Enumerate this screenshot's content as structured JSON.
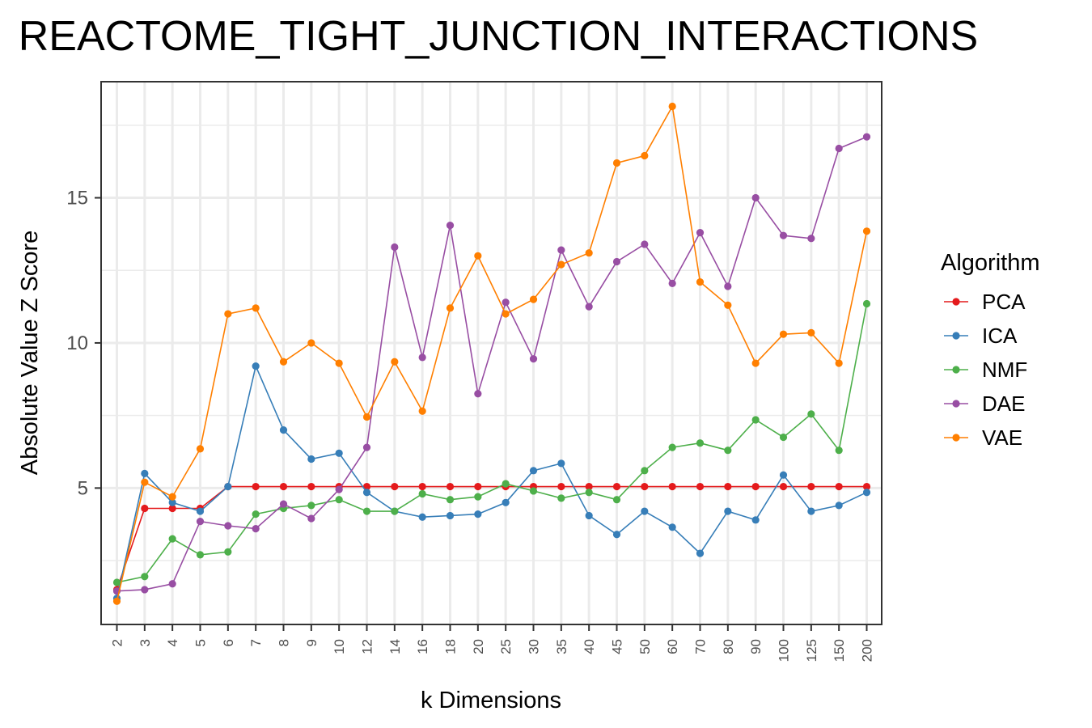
{
  "chart_data": {
    "type": "line",
    "title": "REACTOME_TIGHT_JUNCTION_INTERACTIONS",
    "xlabel": "k Dimensions",
    "ylabel": "Absolute Value Z Score",
    "categories": [
      "2",
      "3",
      "4",
      "5",
      "6",
      "7",
      "8",
      "9",
      "10",
      "12",
      "14",
      "16",
      "18",
      "20",
      "25",
      "30",
      "35",
      "40",
      "45",
      "50",
      "60",
      "70",
      "80",
      "90",
      "100",
      "125",
      "150",
      "200"
    ],
    "y_ticks": [
      "5",
      "10",
      "15"
    ],
    "ylim": [
      0.3,
      19
    ],
    "grid": true,
    "legend_title": "Algorithm",
    "legend_position": "right",
    "series": [
      {
        "name": "PCA",
        "color": "#E41A1C",
        "values": [
          1.5,
          4.3,
          4.3,
          4.3,
          5.05,
          5.05,
          5.05,
          5.05,
          5.05,
          5.05,
          5.05,
          5.05,
          5.05,
          5.05,
          5.05,
          5.05,
          5.05,
          5.05,
          5.05,
          5.05,
          5.05,
          5.05,
          5.05,
          5.05,
          5.05,
          5.05,
          5.05,
          5.05
        ]
      },
      {
        "name": "ICA",
        "color": "#377EB8",
        "values": [
          1.2,
          5.5,
          4.5,
          4.2,
          5.05,
          9.2,
          7.0,
          6.0,
          6.2,
          4.85,
          4.2,
          4.0,
          4.05,
          4.1,
          4.5,
          5.6,
          5.85,
          4.05,
          3.4,
          4.2,
          3.65,
          2.75,
          4.2,
          3.9,
          5.45,
          4.2,
          4.4,
          4.85
        ]
      },
      {
        "name": "NMF",
        "color": "#4DAF4A",
        "values": [
          1.75,
          1.95,
          3.25,
          2.7,
          2.8,
          4.1,
          4.3,
          4.4,
          4.6,
          4.2,
          4.2,
          4.8,
          4.6,
          4.7,
          5.15,
          4.9,
          4.65,
          4.85,
          4.6,
          5.6,
          6.4,
          6.55,
          6.3,
          7.35,
          6.75,
          7.55,
          6.3,
          11.35
        ]
      },
      {
        "name": "DAE",
        "color": "#984EA3",
        "values": [
          1.45,
          1.5,
          1.7,
          3.85,
          3.7,
          3.6,
          4.45,
          3.95,
          4.95,
          6.4,
          13.3,
          9.5,
          14.05,
          8.25,
          11.4,
          9.45,
          13.2,
          11.25,
          12.8,
          13.4,
          12.05,
          13.8,
          11.95,
          15.0,
          13.7,
          13.6,
          16.7,
          17.1
        ]
      },
      {
        "name": "VAE",
        "color": "#FF7F00",
        "values": [
          1.1,
          5.2,
          4.7,
          6.35,
          11.0,
          11.2,
          9.35,
          10.0,
          9.3,
          7.45,
          9.35,
          7.65,
          11.2,
          13.0,
          11.0,
          11.5,
          12.7,
          13.1,
          16.2,
          16.45,
          18.15,
          12.1,
          11.3,
          9.3,
          10.3,
          10.35,
          9.3,
          13.85
        ]
      }
    ]
  }
}
